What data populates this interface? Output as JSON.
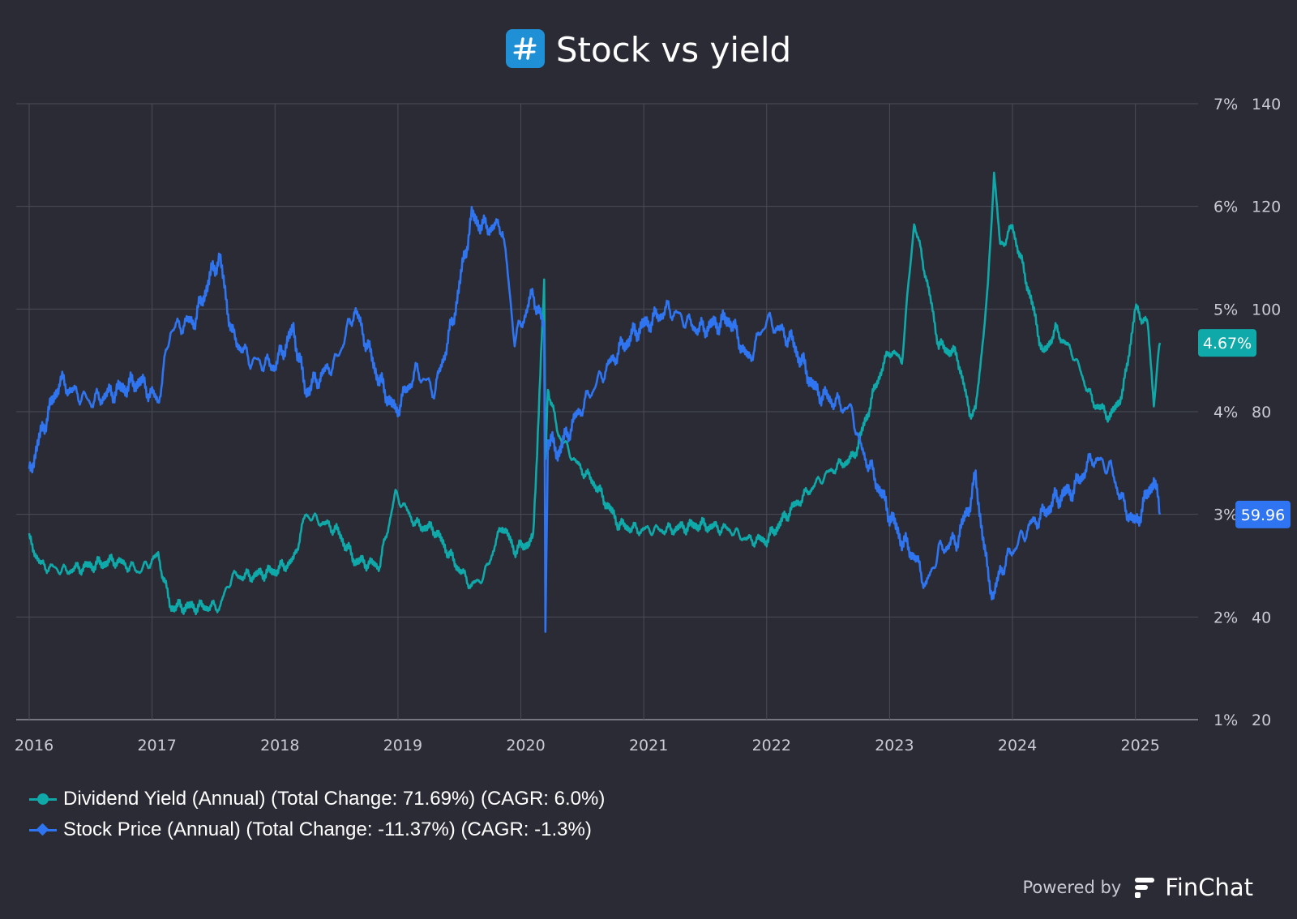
{
  "title": "Stock vs yield",
  "logo_icon": "hashtag-logo-icon",
  "legend": [
    {
      "label": "Dividend Yield (Annual) (Total Change: 71.69%) (CAGR: 6.0%)",
      "color": "#10a9a9",
      "marker": "circle"
    },
    {
      "label": "Stock Price (Annual) (Total Change: -11.37%) (CAGR: -1.3%)",
      "color": "#2f74f0",
      "marker": "diamond"
    }
  ],
  "footer": {
    "powered_by": "Powered by",
    "brand": "FinChat",
    "brand_icon": "finchat-logo-icon"
  },
  "chart_data": {
    "type": "line",
    "title": "Stock vs yield",
    "xlabel": "",
    "ylabel": "",
    "x_ticks": [
      "2016",
      "2017",
      "2018",
      "2019",
      "2020",
      "2021",
      "2022",
      "2023",
      "2024",
      "2025"
    ],
    "x_range": [
      2015.9,
      2025.3
    ],
    "y_left": {
      "ticks": [
        "1%",
        "2%",
        "3%",
        "4%",
        "5%",
        "6%",
        "7%"
      ],
      "range": [
        1,
        7
      ],
      "unit": "%"
    },
    "y_right": {
      "ticks": [
        "20",
        "40",
        "60",
        "80",
        "100",
        "120",
        "140"
      ],
      "range": [
        20,
        140
      ]
    },
    "grid": true,
    "legend_position": "bottom-left",
    "series": [
      {
        "name": "Dividend Yield (Annual) (Total Change: 71.69%) (CAGR: 6.0%)",
        "axis": "left",
        "color": "#10a9a9",
        "last_label": "4.67%",
        "x": [
          2016.0,
          2016.1,
          2016.3,
          2016.5,
          2016.7,
          2016.9,
          2017.05,
          2017.15,
          2017.35,
          2017.55,
          2017.65,
          2017.8,
          2018.0,
          2018.15,
          2018.25,
          2018.5,
          2018.65,
          2018.85,
          2018.98,
          2019.15,
          2019.3,
          2019.45,
          2019.6,
          2019.7,
          2019.85,
          2019.95,
          2020.1,
          2020.19,
          2020.2,
          2020.22,
          2020.3,
          2020.45,
          2020.6,
          2020.8,
          2020.95,
          2021.2,
          2021.45,
          2021.7,
          2021.85,
          2022.0,
          2022.2,
          2022.4,
          2022.55,
          2022.7,
          2022.75,
          2022.9,
          2023.0,
          2023.1,
          2023.2,
          2023.3,
          2023.4,
          2023.55,
          2023.65,
          2023.7,
          2023.8,
          2023.85,
          2023.9,
          2024.0,
          2024.15,
          2024.25,
          2024.35,
          2024.5,
          2024.65,
          2024.8,
          2024.9,
          2025.0,
          2025.1,
          2025.15,
          2025.2
        ],
        "y": [
          2.75,
          2.5,
          2.45,
          2.5,
          2.55,
          2.45,
          2.6,
          2.1,
          2.1,
          2.1,
          2.4,
          2.4,
          2.45,
          2.55,
          3.0,
          2.85,
          2.55,
          2.5,
          3.2,
          2.9,
          2.85,
          2.55,
          2.3,
          2.4,
          2.9,
          2.65,
          2.75,
          5.25,
          3.5,
          4.25,
          3.8,
          3.5,
          3.3,
          2.9,
          2.85,
          2.85,
          2.9,
          2.85,
          2.75,
          2.75,
          3.05,
          3.3,
          3.45,
          3.55,
          3.7,
          4.3,
          4.6,
          4.5,
          5.85,
          5.3,
          4.65,
          4.55,
          4.0,
          4.0,
          5.2,
          6.35,
          5.6,
          5.8,
          5.1,
          4.55,
          4.8,
          4.55,
          4.1,
          3.95,
          4.2,
          5.0,
          4.85,
          4.1,
          4.67
        ]
      },
      {
        "name": "Stock Price (Annual) (Total Change: -11.37%) (CAGR: -1.3%)",
        "axis": "right",
        "color": "#2f74f0",
        "last_label": "59.96",
        "x": [
          2016.0,
          2016.1,
          2016.25,
          2016.35,
          2016.5,
          2016.7,
          2016.9,
          2017.05,
          2017.15,
          2017.35,
          2017.5,
          2017.55,
          2017.65,
          2017.8,
          2018.0,
          2018.15,
          2018.25,
          2018.5,
          2018.65,
          2018.85,
          2018.98,
          2019.15,
          2019.3,
          2019.45,
          2019.6,
          2019.7,
          2019.85,
          2019.95,
          2020.1,
          2020.19,
          2020.2,
          2020.22,
          2020.3,
          2020.45,
          2020.6,
          2020.8,
          2020.95,
          2021.2,
          2021.45,
          2021.7,
          2021.85,
          2022.0,
          2022.2,
          2022.4,
          2022.55,
          2022.7,
          2022.75,
          2022.9,
          2023.0,
          2023.1,
          2023.2,
          2023.3,
          2023.4,
          2023.55,
          2023.65,
          2023.7,
          2023.8,
          2023.85,
          2023.9,
          2024.0,
          2024.15,
          2024.25,
          2024.35,
          2024.5,
          2024.65,
          2024.8,
          2024.9,
          2025.0,
          2025.1,
          2025.15,
          2025.2
        ],
        "y": [
          68,
          76,
          86,
          84,
          82,
          84,
          86,
          82,
          96,
          98,
          108,
          110,
          95,
          90,
          89,
          96,
          84,
          90,
          100,
          86,
          80,
          88,
          84,
          98,
          118,
          116,
          116,
          94,
          103,
          96,
          38,
          75,
          72,
          79,
          85,
          92,
          96,
          100,
          96,
          98,
          90,
          98,
          94,
          84,
          82,
          80,
          74,
          66,
          60,
          55,
          52,
          46,
          53,
          55,
          62,
          67,
          48,
          44,
          49,
          53,
          58,
          60,
          63,
          65,
          71,
          69,
          62,
          58,
          64,
          67,
          59.96
        ]
      }
    ]
  }
}
